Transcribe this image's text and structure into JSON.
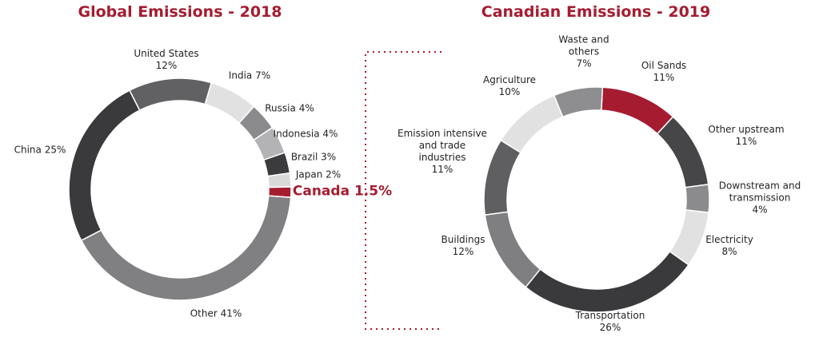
{
  "chart_data": [
    {
      "type": "pie",
      "title": "Global Emissions - 2018",
      "categories": [
        "United States",
        "India",
        "Russia",
        "Indonesia",
        "Brazil",
        "Japan",
        "Canada",
        "Other",
        "China"
      ],
      "values": [
        12,
        7,
        4,
        4,
        3,
        2,
        1.5,
        41,
        25
      ],
      "value_labels": [
        "12%",
        "7%",
        "4%",
        "4%",
        "3%",
        "2%",
        "1.5%",
        "41%",
        "25%"
      ],
      "colors": [
        "#616062",
        "#e1e1e2",
        "#8b8b8d",
        "#b3b3b5",
        "#3b3b3d",
        "#d9d9da",
        "#a51c30",
        "#808083",
        "#3a3a3c"
      ]
    },
    {
      "type": "pie",
      "title": "Canadian Emissions - 2019",
      "categories": [
        "Oil Sands",
        "Other upstream",
        "Downstream and transmission",
        "Electricity",
        "Transportation",
        "Buildings",
        "Emission intensive and trade industries",
        "Agriculture",
        "Waste and others"
      ],
      "values": [
        11,
        11,
        4,
        8,
        26,
        12,
        11,
        10,
        7
      ],
      "value_labels": [
        "11%",
        "11%",
        "4%",
        "8%",
        "26%",
        "12%",
        "11%",
        "10%",
        "7%"
      ],
      "colors": [
        "#a51c30",
        "#464648",
        "#8b8b8d",
        "#e1e1e2",
        "#3a3a3c",
        "#7f7f81",
        "#5f5f61",
        "#e1e1e2",
        "#8e8e90"
      ]
    }
  ]
}
